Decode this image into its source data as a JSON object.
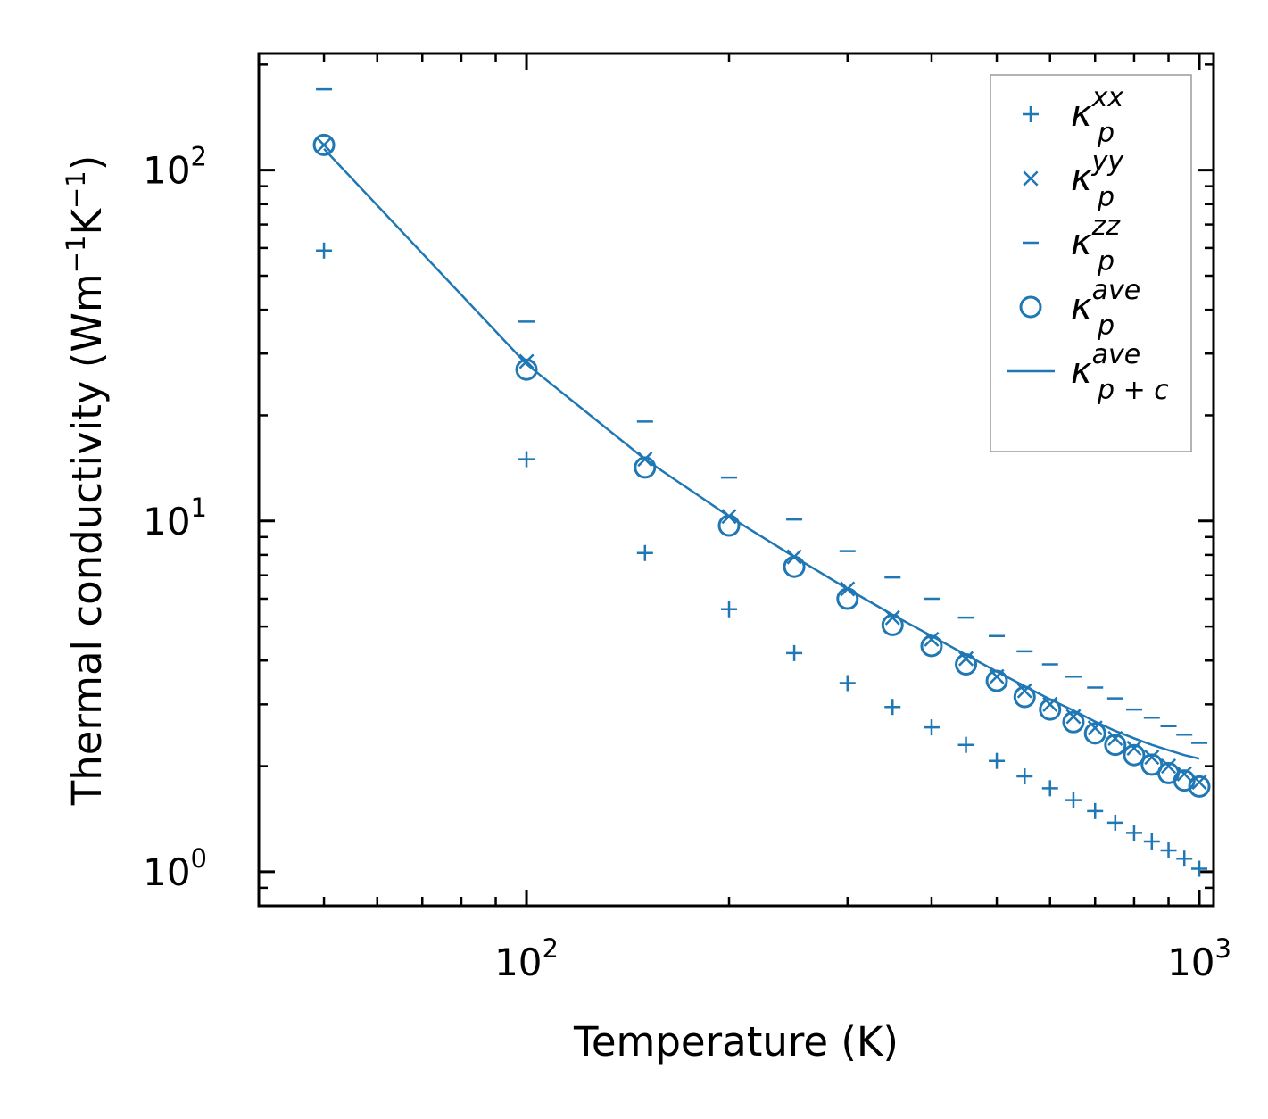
{
  "chart_data": {
    "type": "scatter",
    "xscale": "log",
    "yscale": "log",
    "xlim": [
      40,
      1050
    ],
    "ylim": [
      0.8,
      215
    ],
    "xlabel": "Temperature (K)",
    "ylabel_parts": {
      "prefix": "Thermal conductivity (Wm",
      "sup1": "−1",
      "mid": "K",
      "sup2": "−1",
      "suffix": ")"
    },
    "x_ticks": [
      {
        "base": "10",
        "exp": "2",
        "value": 100
      },
      {
        "base": "10",
        "exp": "3",
        "value": 1000
      }
    ],
    "y_ticks": [
      {
        "base": "10",
        "exp": "0",
        "value": 1
      },
      {
        "base": "10",
        "exp": "1",
        "value": 10
      },
      {
        "base": "10",
        "exp": "2",
        "value": 100
      }
    ],
    "color": "#1f77b4",
    "x": [
      50,
      100,
      150,
      200,
      250,
      300,
      350,
      400,
      450,
      500,
      550,
      600,
      650,
      700,
      750,
      800,
      850,
      900,
      950,
      1000
    ],
    "series": [
      {
        "name": "kappa_p_xx",
        "label_base": "κ",
        "label_sup": "xx",
        "label_sub": "p",
        "marker": "plus",
        "values": [
          59,
          15,
          8.1,
          5.6,
          4.2,
          3.45,
          2.95,
          2.58,
          2.3,
          2.07,
          1.87,
          1.73,
          1.6,
          1.49,
          1.38,
          1.29,
          1.22,
          1.15,
          1.09,
          1.02
        ]
      },
      {
        "name": "kappa_p_yy",
        "label_base": "κ",
        "label_sup": "yy",
        "label_sub": "p",
        "marker": "x",
        "values": [
          118,
          28.5,
          15,
          10.3,
          7.9,
          6.4,
          5.3,
          4.6,
          4.05,
          3.6,
          3.28,
          3.0,
          2.77,
          2.57,
          2.4,
          2.25,
          2.12,
          2.0,
          1.9,
          1.8
        ]
      },
      {
        "name": "kappa_p_zz",
        "label_base": "κ",
        "label_sup": "zz",
        "label_sub": "p",
        "marker": "hline",
        "values": [
          170,
          37,
          19.2,
          13.3,
          10.1,
          8.2,
          6.9,
          6.0,
          5.3,
          4.7,
          4.25,
          3.9,
          3.6,
          3.35,
          3.12,
          2.9,
          2.75,
          2.6,
          2.46,
          2.33
        ]
      },
      {
        "name": "kappa_p_ave",
        "label_base": "κ",
        "label_sup": "ave",
        "label_sub": "p",
        "marker": "circle",
        "values": [
          118,
          27,
          14.2,
          9.7,
          7.4,
          6.0,
          5.05,
          4.4,
          3.9,
          3.5,
          3.15,
          2.9,
          2.67,
          2.48,
          2.3,
          2.15,
          2.02,
          1.91,
          1.82,
          1.75
        ]
      },
      {
        "name": "kappa_p_c_ave",
        "label_base": "κ",
        "label_sup": "ave",
        "label_sub": "p + c",
        "marker": "line",
        "values": [
          115,
          28,
          15,
          10.3,
          7.9,
          6.4,
          5.4,
          4.7,
          4.15,
          3.72,
          3.38,
          3.1,
          2.88,
          2.68,
          2.52,
          2.4,
          2.3,
          2.22,
          2.15,
          2.1
        ]
      }
    ],
    "legend_position": "top-right",
    "grid": false
  }
}
